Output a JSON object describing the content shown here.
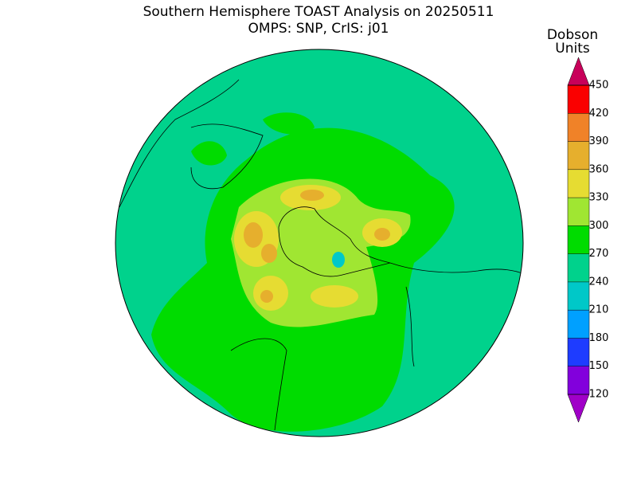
{
  "header": {
    "title": "Southern Hemisphere TOAST Analysis on 20250511",
    "subtitle": "OMPS: SNP, CrIS: j01"
  },
  "colorbar": {
    "label": [
      "Dobson",
      "Units"
    ],
    "ticks": [
      120,
      150,
      180,
      210,
      240,
      270,
      300,
      330,
      360,
      390,
      420,
      450
    ],
    "colors": [
      "#a000c8",
      "#8200dc",
      "#1e3cff",
      "#00a0ff",
      "#00c8c8",
      "#00d28c",
      "#00dc00",
      "#a0e632",
      "#e6dc32",
      "#e6af2d",
      "#f08228",
      "#fa0000",
      "#c8005a"
    ]
  }
}
